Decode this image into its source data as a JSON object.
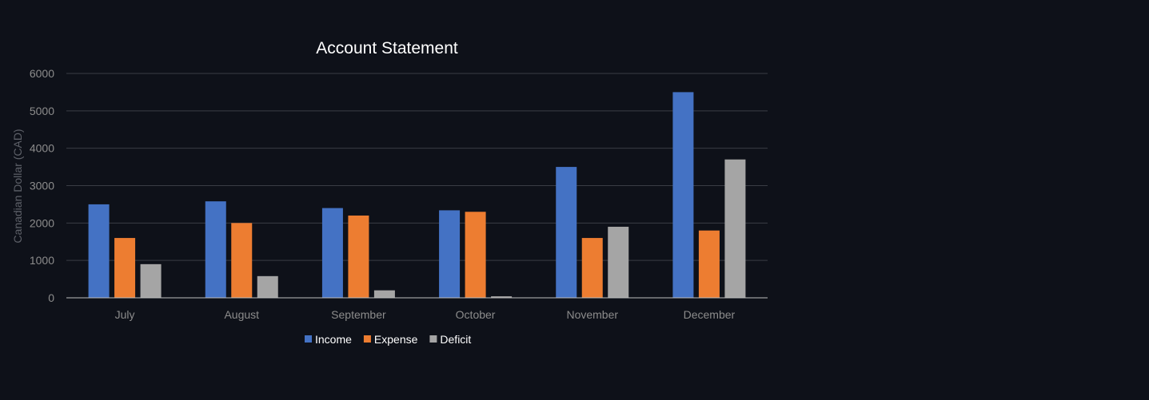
{
  "chart_data": {
    "type": "bar",
    "title": "Account Statement",
    "xlabel": "",
    "ylabel": "Canadian Dollar (CAD)",
    "ylim": [
      0,
      6000
    ],
    "yticks": [
      0,
      1000,
      2000,
      3000,
      4000,
      5000,
      6000
    ],
    "grid": true,
    "legend_position": "bottom",
    "categories": [
      "July",
      "August",
      "September",
      "October",
      "November",
      "December"
    ],
    "series": [
      {
        "name": "Income",
        "color": "#4472c4",
        "values": [
          2500,
          2580,
          2400,
          2340,
          3500,
          5500
        ]
      },
      {
        "name": "Expense",
        "color": "#ed7d31",
        "values": [
          1600,
          2000,
          2200,
          2300,
          1600,
          1800
        ]
      },
      {
        "name": "Deficit",
        "color": "#a5a5a5",
        "values": [
          900,
          580,
          200,
          40,
          1900,
          3700
        ]
      }
    ]
  },
  "colors": {
    "background": "#0e1119",
    "gridline": "#3a3d45",
    "axis_line": "#bfbfbf",
    "tick_text": "#8c8c8c",
    "title_text": "#ffffff",
    "legend_text": "#ffffff"
  }
}
